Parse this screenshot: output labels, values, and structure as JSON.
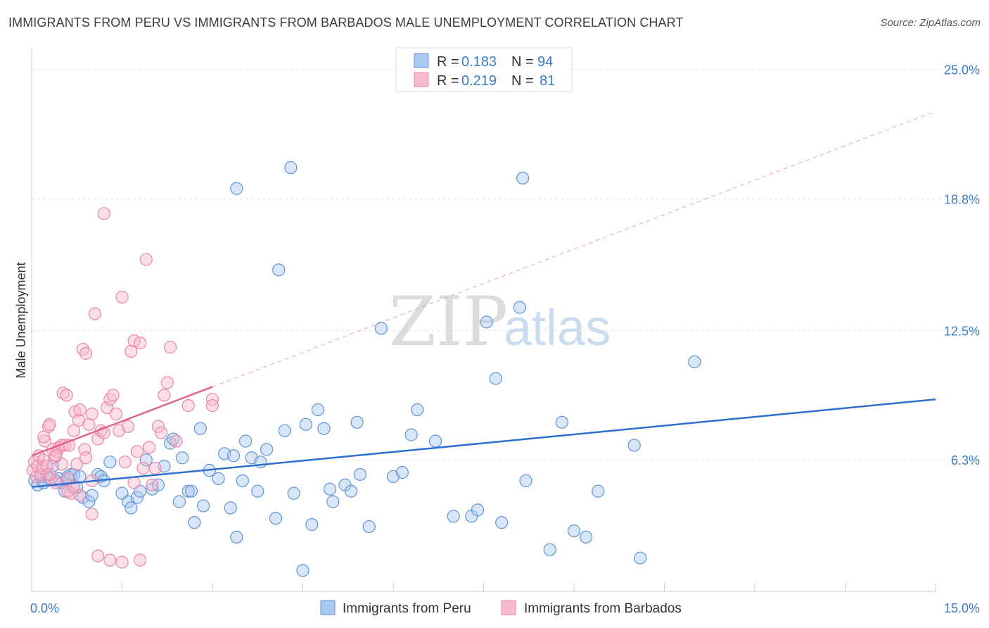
{
  "title": "IMMIGRANTS FROM PERU VS IMMIGRANTS FROM BARBADOS MALE UNEMPLOYMENT CORRELATION CHART",
  "source": "Source: ZipAtlas.com",
  "watermark": {
    "zip": "ZIP",
    "atlas": "atlas"
  },
  "colors": {
    "peru_fill": "#a9c8f0",
    "peru_stroke": "#5f95d6",
    "peru_line": "#2e6fcf",
    "barbados_fill": "#f6b9cd",
    "barbados_stroke": "#ea86a8",
    "barbados_line": "#e0628e",
    "tick": "#3d7cc9",
    "grid": "#e3e3e3"
  },
  "legend": {
    "r_label": "R =",
    "n_label": "N =",
    "peru": {
      "r": "0.183",
      "n": "94"
    },
    "barbados": {
      "r": "0.219",
      "n": "81"
    }
  },
  "chart_data": {
    "type": "scatter",
    "xlabel": "",
    "ylabel": "Male Unemployment",
    "xlim": [
      0,
      15
    ],
    "ylim": [
      0,
      25.8
    ],
    "x_ticks": [
      "0.0%",
      "15.0%"
    ],
    "y_ticks": [
      {
        "value": 25.0,
        "label": "25.0%"
      },
      {
        "value": 18.8,
        "label": "18.8%"
      },
      {
        "value": 12.5,
        "label": "12.5%"
      },
      {
        "value": 6.3,
        "label": "6.3%"
      }
    ],
    "grid": true,
    "legend_position": "top-center",
    "series": [
      {
        "name": "Immigrants from Peru",
        "trend": {
          "x0": 0,
          "y0": 5.0,
          "x1": 15,
          "y1": 9.2,
          "dashed_to": 15
        },
        "points": [
          [
            0.05,
            5.3
          ],
          [
            0.1,
            5.1
          ],
          [
            0.15,
            5.5
          ],
          [
            0.2,
            5.2
          ],
          [
            0.25,
            5.6
          ],
          [
            0.3,
            5.4
          ],
          [
            0.35,
            6.0
          ],
          [
            0.4,
            5.3
          ],
          [
            0.45,
            5.4
          ],
          [
            0.5,
            5.2
          ],
          [
            0.55,
            4.8
          ],
          [
            0.6,
            5.5
          ],
          [
            0.65,
            5.6
          ],
          [
            0.7,
            5.6
          ],
          [
            0.75,
            5.0
          ],
          [
            0.8,
            5.5
          ],
          [
            0.85,
            4.5
          ],
          [
            0.95,
            4.3
          ],
          [
            1.0,
            4.6
          ],
          [
            1.1,
            5.6
          ],
          [
            1.15,
            5.5
          ],
          [
            1.3,
            6.2
          ],
          [
            1.2,
            5.3
          ],
          [
            1.5,
            4.7
          ],
          [
            1.6,
            4.3
          ],
          [
            1.65,
            4.0
          ],
          [
            1.75,
            4.5
          ],
          [
            1.8,
            4.8
          ],
          [
            1.9,
            6.3
          ],
          [
            2.0,
            4.9
          ],
          [
            2.1,
            5.1
          ],
          [
            2.2,
            6.0
          ],
          [
            2.3,
            7.1
          ],
          [
            2.35,
            7.3
          ],
          [
            2.45,
            4.3
          ],
          [
            2.5,
            6.4
          ],
          [
            2.6,
            4.8
          ],
          [
            2.65,
            4.8
          ],
          [
            2.7,
            3.3
          ],
          [
            2.8,
            7.8
          ],
          [
            2.85,
            4.1
          ],
          [
            2.95,
            5.8
          ],
          [
            3.1,
            5.4
          ],
          [
            3.2,
            6.6
          ],
          [
            3.3,
            4.0
          ],
          [
            3.35,
            6.5
          ],
          [
            3.4,
            2.6
          ],
          [
            3.5,
            5.3
          ],
          [
            3.55,
            7.2
          ],
          [
            3.65,
            6.4
          ],
          [
            3.75,
            4.8
          ],
          [
            3.8,
            6.2
          ],
          [
            3.9,
            6.8
          ],
          [
            4.05,
            3.5
          ],
          [
            4.1,
            15.4
          ],
          [
            4.2,
            7.7
          ],
          [
            4.35,
            4.7
          ],
          [
            4.5,
            1.0
          ],
          [
            4.55,
            8.0
          ],
          [
            4.65,
            3.2
          ],
          [
            4.75,
            8.7
          ],
          [
            4.85,
            7.8
          ],
          [
            4.95,
            4.9
          ],
          [
            5.0,
            4.3
          ],
          [
            5.2,
            5.1
          ],
          [
            5.3,
            4.8
          ],
          [
            5.4,
            8.1
          ],
          [
            5.45,
            5.6
          ],
          [
            5.6,
            3.1
          ],
          [
            5.8,
            12.6
          ],
          [
            6.0,
            5.5
          ],
          [
            6.15,
            5.7
          ],
          [
            6.3,
            7.5
          ],
          [
            6.4,
            8.7
          ],
          [
            6.7,
            7.2
          ],
          [
            7.0,
            3.6
          ],
          [
            7.3,
            3.6
          ],
          [
            7.4,
            3.9
          ],
          [
            7.55,
            12.9
          ],
          [
            7.7,
            10.2
          ],
          [
            7.8,
            3.3
          ],
          [
            8.1,
            13.6
          ],
          [
            8.15,
            19.8
          ],
          [
            8.2,
            5.3
          ],
          [
            8.6,
            2.0
          ],
          [
            8.8,
            8.1
          ],
          [
            9.0,
            2.9
          ],
          [
            9.2,
            2.6
          ],
          [
            9.4,
            4.8
          ],
          [
            10.0,
            7.0
          ],
          [
            10.1,
            1.6
          ],
          [
            4.3,
            20.3
          ],
          [
            3.4,
            19.3
          ],
          [
            11.0,
            11.0
          ]
        ]
      },
      {
        "name": "Immigrants from Barbados",
        "trend": {
          "x0": 0,
          "y0": 6.5,
          "x1": 3.0,
          "y1": 9.8,
          "dashed_to": 15
        },
        "points": [
          [
            0.02,
            5.8
          ],
          [
            0.05,
            6.2
          ],
          [
            0.08,
            5.5
          ],
          [
            0.1,
            6.0
          ],
          [
            0.12,
            6.5
          ],
          [
            0.15,
            5.6
          ],
          [
            0.18,
            5.9
          ],
          [
            0.2,
            6.3
          ],
          [
            0.22,
            7.2
          ],
          [
            0.25,
            6.0
          ],
          [
            0.28,
            7.9
          ],
          [
            0.3,
            8.0
          ],
          [
            0.32,
            5.4
          ],
          [
            0.35,
            6.8
          ],
          [
            0.38,
            6.4
          ],
          [
            0.4,
            5.2
          ],
          [
            0.42,
            6.7
          ],
          [
            0.45,
            6.9
          ],
          [
            0.5,
            7.0
          ],
          [
            0.52,
            9.5
          ],
          [
            0.55,
            7.0
          ],
          [
            0.58,
            9.4
          ],
          [
            0.6,
            5.4
          ],
          [
            0.62,
            7.0
          ],
          [
            0.65,
            4.7
          ],
          [
            0.7,
            7.7
          ],
          [
            0.72,
            8.6
          ],
          [
            0.75,
            6.1
          ],
          [
            0.78,
            8.2
          ],
          [
            0.8,
            8.7
          ],
          [
            0.85,
            11.6
          ],
          [
            0.88,
            6.8
          ],
          [
            0.9,
            6.4
          ],
          [
            0.95,
            8.0
          ],
          [
            1.0,
            8.5
          ],
          [
            1.05,
            13.3
          ],
          [
            1.1,
            7.3
          ],
          [
            1.15,
            7.7
          ],
          [
            1.2,
            7.6
          ],
          [
            1.25,
            8.8
          ],
          [
            1.3,
            9.2
          ],
          [
            1.35,
            9.4
          ],
          [
            1.4,
            8.5
          ],
          [
            1.45,
            7.7
          ],
          [
            1.5,
            14.1
          ],
          [
            1.55,
            6.2
          ],
          [
            1.6,
            7.9
          ],
          [
            1.65,
            11.5
          ],
          [
            1.7,
            12.0
          ],
          [
            1.75,
            6.7
          ],
          [
            1.8,
            11.9
          ],
          [
            1.85,
            5.9
          ],
          [
            1.9,
            15.9
          ],
          [
            1.95,
            6.9
          ],
          [
            2.0,
            5.1
          ],
          [
            2.05,
            5.9
          ],
          [
            2.1,
            7.9
          ],
          [
            2.15,
            7.6
          ],
          [
            2.2,
            9.4
          ],
          [
            2.25,
            10.0
          ],
          [
            2.3,
            11.7
          ],
          [
            2.4,
            7.2
          ],
          [
            2.6,
            8.9
          ],
          [
            3.0,
            9.2
          ],
          [
            3.0,
            8.9
          ],
          [
            0.9,
            11.4
          ],
          [
            1.2,
            18.1
          ],
          [
            1.0,
            3.7
          ],
          [
            1.1,
            1.7
          ],
          [
            1.3,
            1.5
          ],
          [
            1.5,
            1.4
          ],
          [
            1.8,
            1.5
          ],
          [
            0.6,
            4.8
          ],
          [
            0.5,
            6.1
          ],
          [
            0.8,
            4.6
          ],
          [
            1.0,
            5.3
          ],
          [
            0.3,
            5.6
          ],
          [
            0.4,
            6.5
          ],
          [
            0.2,
            7.4
          ],
          [
            0.7,
            5.0
          ],
          [
            1.7,
            5.2
          ]
        ]
      }
    ]
  },
  "bottom_legend": [
    "Immigrants from Peru",
    "Immigrants from Barbados"
  ]
}
